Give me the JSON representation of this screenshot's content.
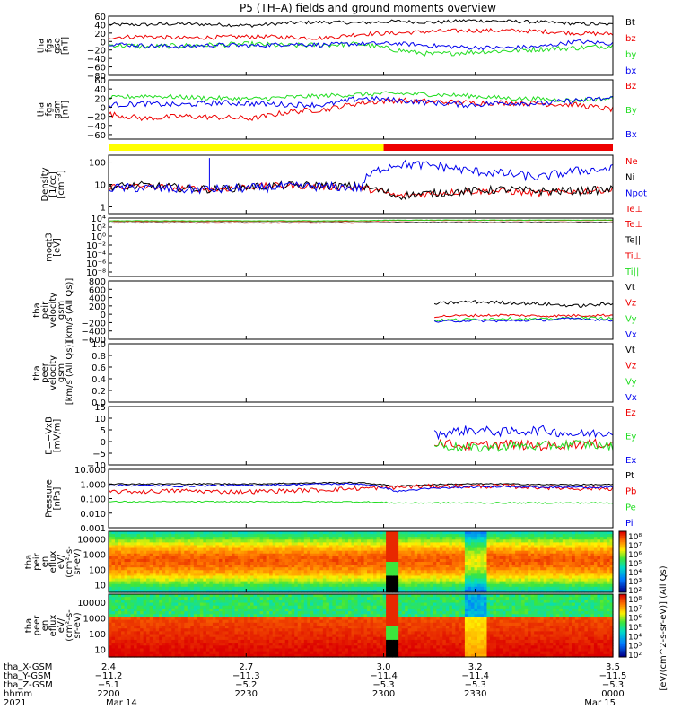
{
  "title": "P5 (TH–A) fields and ground moments overview",
  "colors": {
    "black": "#000000",
    "red": "#ee0000",
    "green": "#22dd22",
    "blue": "#0000ee",
    "yellow": "#ffff00",
    "bar_red": "#ee0000"
  },
  "chart_data": [
    {
      "id": "fgs_gse",
      "type": "line",
      "ylabel": [
        "tha",
        "fgs",
        "gse",
        "[nT]"
      ],
      "ylim": [
        -80,
        60
      ],
      "yticks": [
        "60",
        "40",
        "20",
        "0",
        "−20",
        "−40",
        "−60",
        "−80"
      ],
      "ytick_values": [
        60,
        40,
        20,
        0,
        -20,
        -40,
        -60,
        -80
      ],
      "series": [
        {
          "name": "Bt",
          "color": "#000000",
          "base": [
            40,
            40,
            42,
            40,
            38,
            44,
            46,
            44,
            48,
            45,
            50,
            48,
            46,
            42,
            40
          ],
          "noise": 4
        },
        {
          "name": "bz",
          "color": "#ee0000",
          "base": [
            10,
            12,
            8,
            10,
            12,
            10,
            8,
            18,
            20,
            24,
            26,
            26,
            24,
            20,
            18
          ],
          "noise": 5
        },
        {
          "name": "by",
          "color": "#22dd22",
          "base": [
            -8,
            -12,
            -10,
            -8,
            -6,
            -10,
            -8,
            -6,
            -20,
            -30,
            -25,
            -22,
            -18,
            -15,
            -10
          ],
          "noise": 6
        },
        {
          "name": "bx",
          "color": "#0000ee",
          "base": [
            -5,
            -10,
            -12,
            -8,
            -10,
            -6,
            -8,
            -5,
            -5,
            -10,
            -14,
            -15,
            -12,
            0,
            -5
          ],
          "noise": 5
        }
      ]
    },
    {
      "id": "fgs_gsm",
      "type": "line",
      "ylabel": [
        "tha",
        "fgs",
        "gsm",
        "[nT]"
      ],
      "ylim": [
        -70,
        60
      ],
      "yticks": [
        "60",
        "40",
        "20",
        "0",
        "−20",
        "−40",
        "−60"
      ],
      "ytick_values": [
        60,
        40,
        20,
        0,
        -20,
        -40,
        -60
      ],
      "series": [
        {
          "name": "Bz",
          "color": "#ee0000",
          "base": [
            -15,
            -25,
            -20,
            -22,
            -25,
            -10,
            -5,
            10,
            15,
            12,
            10,
            10,
            8,
            5,
            -5
          ],
          "noise": 6
        },
        {
          "name": "By",
          "color": "#22dd22",
          "base": [
            20,
            25,
            22,
            20,
            18,
            22,
            25,
            28,
            30,
            28,
            25,
            20,
            18,
            15,
            20
          ],
          "noise": 5
        },
        {
          "name": "Bx",
          "color": "#0000ee",
          "base": [
            5,
            8,
            5,
            10,
            8,
            6,
            5,
            20,
            15,
            10,
            5,
            10,
            8,
            15,
            20
          ],
          "noise": 6
        }
      ]
    },
    {
      "id": "region_bar",
      "type": "bar",
      "segments": [
        {
          "from": 2.4,
          "to": 3.0,
          "color": "yellow"
        },
        {
          "from": 3.0,
          "to": 3.5,
          "color": "bar_red"
        }
      ]
    },
    {
      "id": "density",
      "type": "line",
      "scale": "log",
      "ylabel": [
        "Density",
        "[1/cc]",
        "[cm⁻³]"
      ],
      "ylim": [
        0.5,
        200
      ],
      "yticks": [
        "100",
        "10",
        "1"
      ],
      "ytick_values": [
        100,
        10,
        1
      ],
      "series": [
        {
          "name": "Ne",
          "color": "#ee0000",
          "base": [
            8,
            8,
            7,
            6,
            8,
            9,
            8,
            7,
            3,
            4,
            5,
            5,
            4,
            5,
            6
          ],
          "noise": 0.15
        },
        {
          "name": "Ni",
          "color": "#000000",
          "base": [
            8,
            9,
            7,
            6,
            8,
            9,
            9,
            8,
            3,
            4,
            5,
            6,
            5,
            5,
            6
          ],
          "noise": 0.18
        },
        {
          "name": "Npot",
          "color": "#0000ee",
          "base": [
            7,
            7,
            6,
            6,
            7,
            8,
            8,
            7,
            80,
            70,
            40,
            30,
            20,
            40,
            50
          ],
          "noise": 0.2
        },
        {
          "name": "Te⊥",
          "color": "#ee0000",
          "hidden": true,
          "base": [],
          "noise": 0
        }
      ]
    },
    {
      "id": "temperature",
      "type": "line",
      "scale": "log",
      "ylabel": [
        "moqt3",
        "[eV]"
      ],
      "ylim": [
        1e-09,
        10000.0
      ],
      "yticks": [
        "10⁴",
        "10²",
        "10⁰",
        "10⁻²",
        "10⁻⁴",
        "10⁻⁶",
        "10⁻⁸"
      ],
      "ytick_values": [
        10000.0,
        100.0,
        1,
        0.01,
        0.0001,
        1e-06,
        1e-08
      ],
      "series": [
        {
          "name": "Te⊥",
          "color": "#ee0000",
          "base": [
            800,
            800,
            800,
            800,
            800,
            800,
            800,
            800,
            900,
            900,
            900,
            900,
            900,
            900,
            900
          ],
          "noise": 0.05
        },
        {
          "name": "Te||",
          "color": "#000000",
          "base": [
            900,
            900,
            900,
            900,
            900,
            900,
            900,
            900,
            1000,
            1000,
            1000,
            1000,
            1000,
            1000,
            1000
          ],
          "noise": 0.05
        },
        {
          "name": "Ti⊥",
          "color": "#ee0000",
          "base": [
            2000,
            2000,
            2000,
            2000,
            2000,
            2000,
            2000,
            2000,
            3000,
            3000,
            3000,
            3000,
            3000,
            3000,
            3000
          ],
          "noise": 0.05
        },
        {
          "name": "Ti||",
          "color": "#22dd22",
          "base": [
            2500,
            2500,
            2500,
            2500,
            2500,
            2500,
            2500,
            2500,
            3500,
            3500,
            3500,
            3500,
            3500,
            3500,
            3500
          ],
          "noise": 0.05
        }
      ]
    },
    {
      "id": "peir_velocity",
      "type": "line",
      "ylabel": [
        "tha",
        "peir",
        "velocity",
        "gsm",
        "[km/s (All Qs)]"
      ],
      "ylim": [
        -600,
        800
      ],
      "yticks": [
        "800",
        "600",
        "400",
        "200",
        "0",
        "−200",
        "−400",
        "−600"
      ],
      "ytick_values": [
        800,
        600,
        400,
        200,
        0,
        -200,
        -400,
        -600
      ],
      "start_x": 3.01,
      "series": [
        {
          "name": "Vt",
          "color": "#000000",
          "base": [
            null,
            null,
            null,
            null,
            null,
            null,
            null,
            null,
            null,
            250,
            300,
            280,
            250,
            200,
            250
          ],
          "noise": 40
        },
        {
          "name": "Vz",
          "color": "#ee0000",
          "base": [
            null,
            null,
            null,
            null,
            null,
            null,
            null,
            null,
            null,
            -50,
            -30,
            -20,
            -40,
            -30,
            -20
          ],
          "noise": 30
        },
        {
          "name": "Vy",
          "color": "#22dd22",
          "base": [
            null,
            null,
            null,
            null,
            null,
            null,
            null,
            null,
            null,
            -150,
            -120,
            -100,
            -120,
            -80,
            -100
          ],
          "noise": 30
        },
        {
          "name": "Vx",
          "color": "#0000ee",
          "base": [
            null,
            null,
            null,
            null,
            null,
            null,
            null,
            null,
            null,
            -180,
            -150,
            -160,
            -140,
            -100,
            -150
          ],
          "noise": 30
        }
      ]
    },
    {
      "id": "peer_velocity",
      "type": "line",
      "ylabel": [
        "tha",
        "peer",
        "velocity",
        "gsm",
        "[km/s (All Qs)]"
      ],
      "ylim": [
        0,
        1
      ],
      "yticks": [
        "1.0",
        "0.8",
        "0.6",
        "0.4",
        "0.2",
        "0.0"
      ],
      "ytick_values": [
        1.0,
        0.8,
        0.6,
        0.4,
        0.2,
        0.0
      ],
      "series": [
        {
          "name": "Vt",
          "color": "#000000",
          "base": [],
          "noise": 0
        },
        {
          "name": "Vz",
          "color": "#ee0000",
          "base": [],
          "noise": 0
        },
        {
          "name": "Vy",
          "color": "#22dd22",
          "base": [],
          "noise": 0
        },
        {
          "name": "Vx",
          "color": "#0000ee",
          "base": [],
          "noise": 0
        }
      ]
    },
    {
      "id": "efield",
      "type": "line",
      "ylabel": [
        "E=−VxB",
        "[mV/m]"
      ],
      "ylim": [
        -10,
        15
      ],
      "yticks": [
        "15",
        "10",
        "5",
        "0",
        "−5",
        "−10"
      ],
      "ytick_values": [
        15,
        10,
        5,
        0,
        -5,
        -10
      ],
      "start_x": 3.01,
      "series": [
        {
          "name": "Ez",
          "color": "#ee0000",
          "base": [
            null,
            null,
            null,
            null,
            null,
            null,
            null,
            null,
            null,
            0,
            -2,
            -1,
            -2,
            -1,
            -1
          ],
          "noise": 2
        },
        {
          "name": "Ey",
          "color": "#22dd22",
          "base": [
            null,
            null,
            null,
            null,
            null,
            null,
            null,
            null,
            null,
            -1,
            -3,
            -2,
            -2,
            -1,
            -2
          ],
          "noise": 2
        },
        {
          "name": "Ex",
          "color": "#0000ee",
          "base": [
            null,
            null,
            null,
            null,
            null,
            null,
            null,
            null,
            null,
            3,
            5,
            4,
            5,
            3,
            4
          ],
          "noise": 2
        }
      ]
    },
    {
      "id": "pressure",
      "type": "line",
      "scale": "log",
      "ylabel": [
        "Pressure",
        "[nPa]"
      ],
      "ylim": [
        0.001,
        10
      ],
      "yticks": [
        "10.000",
        "1.000",
        "0.100",
        "0.010",
        "0.001"
      ],
      "ytick_values": [
        10,
        1,
        0.1,
        0.01,
        0.001
      ],
      "series": [
        {
          "name": "Pt",
          "color": "#000000",
          "base": [
            1.0,
            1.0,
            1.0,
            1.0,
            1.0,
            1.1,
            1.2,
            1.2,
            0.7,
            0.9,
            1.0,
            1.0,
            0.9,
            0.9,
            0.9
          ],
          "noise": 0.04
        },
        {
          "name": "Pb",
          "color": "#ee0000",
          "base": [
            0.3,
            0.3,
            0.35,
            0.3,
            0.3,
            0.35,
            0.4,
            0.5,
            0.6,
            0.7,
            0.7,
            0.7,
            0.6,
            0.5,
            0.5
          ],
          "noise": 0.15
        },
        {
          "name": "Pe",
          "color": "#22dd22",
          "base": [
            0.06,
            0.06,
            0.06,
            0.06,
            0.06,
            0.06,
            0.06,
            0.06,
            0.05,
            0.05,
            0.05,
            0.05,
            0.05,
            0.05,
            0.05
          ],
          "noise": 0.05
        },
        {
          "name": "Pi",
          "color": "#0000ee",
          "base": [
            0.8,
            0.8,
            0.7,
            0.8,
            0.8,
            0.9,
            1.0,
            1.0,
            0.3,
            0.5,
            0.6,
            0.7,
            0.6,
            0.6,
            0.6
          ],
          "noise": 0.06
        }
      ]
    },
    {
      "id": "peir_spec",
      "type": "heatmap",
      "ylabel": [
        "tha",
        "peir",
        "en",
        "eflux",
        "eV/",
        "(cm²-s-",
        "sr-eV)"
      ],
      "yticks": [
        "10000",
        "1000",
        "100",
        "10"
      ],
      "ytick_values": [
        10000,
        1000,
        100,
        10
      ]
    },
    {
      "id": "peer_spec",
      "type": "heatmap",
      "ylabel": [
        "tha",
        "peer",
        "en",
        "eflux",
        "eV/",
        "(cm²-s-",
        "sr-eV)"
      ],
      "yticks": [
        "10000",
        "1000",
        "100",
        "10"
      ],
      "ytick_values": [
        10000,
        1000,
        100,
        10
      ]
    }
  ],
  "colorbar": {
    "label": "[eV/(cm^2-s-sr-eV)] (All Qs)",
    "ticks": [
      "10⁸",
      "10⁷",
      "10⁶",
      "10⁵",
      "10⁴",
      "10³",
      "10²"
    ]
  },
  "x_axis": {
    "range": [
      2.4,
      3.5
    ],
    "ticks_x": [
      2.4,
      2.7,
      3.0,
      3.2,
      3.5
    ],
    "row_labels": [
      "tha_X-GSM",
      "tha_Y-GSM",
      "tha_Z-GSM",
      "hhmm",
      "2021"
    ],
    "columns": [
      [
        "2.4",
        "−11.2",
        "−5.1",
        "2200",
        "Mar 14"
      ],
      [
        "2.7",
        "−11.3",
        "−5.2",
        "2230",
        ""
      ],
      [
        "3.0",
        "−11.4",
        "−5.3",
        "2300",
        ""
      ],
      [
        "3.2",
        "−11.4",
        "−5.3",
        "2330",
        ""
      ],
      [
        "3.5",
        "−11.5",
        "−5.3",
        "0000",
        "Mar 15"
      ]
    ]
  }
}
